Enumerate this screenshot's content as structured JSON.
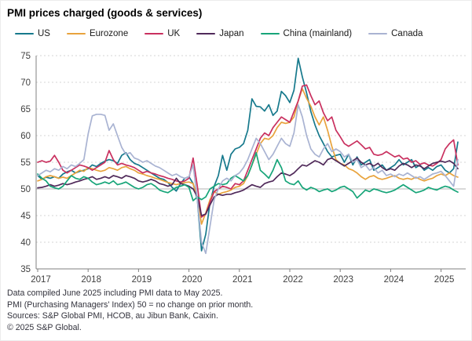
{
  "title": "PMI prices charged (goods & services)",
  "footer": {
    "lines": [
      "Data compiled June 2025 including PMI data to May 2025.",
      "PMI  (Purchasing Managers' Index) 50 = no change on prior month.",
      "Sources: S&P Global PMI,  HCOB, au Jibun Bank, Caixin.",
      "© 2025 S&P Global."
    ]
  },
  "chart_data": {
    "type": "line",
    "title": "PMI prices charged (goods & services)",
    "x_unit": "month",
    "x_start": "2017-01",
    "x_end": "2025-05",
    "x_tick_labels": [
      "2017",
      "2018",
      "2019",
      "2020",
      "2021",
      "2022",
      "2023",
      "2024",
      "2025"
    ],
    "ylim": [
      35,
      75
    ],
    "y_ticks": [
      35,
      40,
      45,
      50,
      55,
      60,
      65,
      70,
      75
    ],
    "grid": "horizontal dashed; solid line at 50 (no change level)",
    "legend_position": "top",
    "axis_color": "#808080",
    "series": [
      {
        "name": "US",
        "color": "#16798c",
        "values": [
          52.5,
          51.8,
          52.2,
          52.0,
          52.3,
          52.0,
          52.8,
          53.2,
          53.5,
          53.0,
          53.3,
          53.5,
          53.8,
          54.5,
          54.2,
          54.8,
          55.2,
          55.5,
          55.3,
          54.8,
          56.3,
          56.8,
          55.5,
          54.8,
          54.5,
          54.0,
          53.5,
          53.0,
          52.5,
          52.0,
          51.8,
          51.2,
          50.3,
          49.6,
          51.0,
          52.0,
          52.3,
          51.0,
          48.0,
          38.4,
          41.5,
          47.5,
          50.5,
          52.5,
          56.3,
          53.5,
          56.5,
          57.5,
          57.8,
          58.5,
          61.0,
          66.9,
          65.5,
          65.4,
          64.6,
          65.8,
          63.8,
          64.6,
          68.3,
          67.5,
          66.2,
          68.5,
          74.5,
          71.0,
          68.0,
          64.5,
          62.0,
          60.0,
          58.5,
          57.0,
          56.0,
          56.3,
          56.5,
          55.0,
          56.5,
          54.5,
          56.0,
          54.5,
          55.0,
          55.5,
          53.5,
          54.0,
          54.5,
          53.5,
          54.0,
          54.5,
          55.5,
          54.5,
          55.0,
          55.5,
          54.0,
          54.5,
          53.5,
          54.0,
          53.5,
          54.2,
          54.5,
          53.5,
          53.0,
          53.8,
          58.8
        ]
      },
      {
        "name": "Eurozone",
        "color": "#e8a33d",
        "values": [
          51.5,
          51.8,
          52.3,
          52.5,
          52.3,
          52.0,
          52.2,
          52.0,
          52.5,
          53.0,
          53.5,
          53.3,
          54.0,
          53.8,
          53.5,
          53.3,
          53.5,
          54.0,
          53.8,
          53.5,
          54.0,
          54.2,
          53.8,
          53.5,
          53.0,
          52.8,
          52.5,
          52.3,
          52.0,
          51.8,
          51.5,
          51.2,
          51.0,
          50.8,
          51.0,
          51.2,
          51.3,
          51.0,
          48.5,
          43.4,
          45.5,
          48.0,
          49.5,
          49.0,
          49.3,
          49.5,
          49.8,
          50.3,
          50.5,
          51.0,
          52.5,
          54.5,
          56.5,
          58.5,
          59.5,
          59.3,
          60.0,
          61.5,
          62.5,
          62.3,
          62.5,
          63.5,
          66.5,
          68.8,
          67.0,
          65.5,
          63.5,
          62.0,
          63.5,
          61.0,
          58.0,
          55.5,
          54.8,
          54.5,
          53.8,
          53.5,
          53.0,
          52.3,
          51.8,
          52.3,
          52.5,
          52.0,
          51.8,
          52.0,
          52.3,
          52.5,
          52.0,
          51.8,
          52.0,
          51.8,
          52.2,
          51.8,
          51.5,
          51.8,
          52.0,
          52.5,
          52.8,
          52.5,
          53.0,
          52.5,
          52.2
        ]
      },
      {
        "name": "UK",
        "color": "#c9305f",
        "values": [
          55.0,
          55.3,
          55.0,
          55.2,
          56.3,
          55.0,
          53.5,
          53.0,
          53.5,
          54.0,
          54.5,
          54.3,
          54.0,
          53.5,
          54.0,
          54.5,
          55.0,
          57.2,
          55.5,
          54.5,
          54.8,
          54.5,
          54.3,
          54.0,
          53.5,
          53.0,
          53.3,
          53.0,
          52.8,
          52.5,
          52.3,
          52.0,
          51.8,
          51.5,
          51.3,
          51.5,
          52.0,
          55.8,
          50.5,
          44.7,
          45.3,
          47.5,
          49.5,
          50.0,
          50.5,
          50.3,
          50.0,
          51.0,
          50.8,
          51.5,
          53.5,
          55.5,
          57.5,
          59.5,
          60.5,
          60.0,
          61.5,
          62.5,
          63.5,
          63.0,
          62.5,
          64.5,
          66.5,
          69.3,
          69.5,
          67.5,
          65.8,
          66.5,
          64.3,
          62.8,
          63.5,
          61.0,
          59.8,
          58.5,
          58.0,
          58.5,
          59.0,
          58.3,
          57.5,
          57.8,
          56.5,
          56.3,
          56.5,
          57.0,
          56.5,
          56.0,
          56.3,
          55.6,
          55.8,
          55.0,
          55.3,
          54.6,
          54.9,
          54.5,
          54.3,
          54.8,
          55.5,
          57.5,
          58.5,
          59.2,
          54.5
        ]
      },
      {
        "name": "Japan",
        "color": "#502a5a",
        "values": [
          50.2,
          50.3,
          50.5,
          50.8,
          50.5,
          50.7,
          51.0,
          50.8,
          51.0,
          51.3,
          51.5,
          51.8,
          52.0,
          52.3,
          51.8,
          52.0,
          52.3,
          52.0,
          52.5,
          52.3,
          52.0,
          52.5,
          52.3,
          52.0,
          51.5,
          51.3,
          51.5,
          51.8,
          51.5,
          51.0,
          50.8,
          50.5,
          50.8,
          52.0,
          51.0,
          50.8,
          50.5,
          50.0,
          48.5,
          45.0,
          45.3,
          47.0,
          48.5,
          49.0,
          48.8,
          49.0,
          49.0,
          49.3,
          49.5,
          49.8,
          50.3,
          50.8,
          50.5,
          50.3,
          51.0,
          51.3,
          51.5,
          52.3,
          53.0,
          52.8,
          52.5,
          53.0,
          53.8,
          54.5,
          54.3,
          54.8,
          55.3,
          55.0,
          54.5,
          55.5,
          55.8,
          55.3,
          54.8,
          54.3,
          54.8,
          55.3,
          55.8,
          55.0,
          54.5,
          54.8,
          54.3,
          54.8,
          54.0,
          53.5,
          53.8,
          53.5,
          54.3,
          54.8,
          54.5,
          54.0,
          54.5,
          54.3,
          53.8,
          54.3,
          54.8,
          55.0,
          55.2,
          55.0,
          55.3,
          54.8,
          53.8
        ]
      },
      {
        "name": "China (mainland)",
        "color": "#17a579",
        "values": [
          52.8,
          52.0,
          51.5,
          50.5,
          50.2,
          50.0,
          50.5,
          51.5,
          52.5,
          52.0,
          51.8,
          52.3,
          52.0,
          51.3,
          50.8,
          51.0,
          51.3,
          51.0,
          51.5,
          50.8,
          51.0,
          51.3,
          50.8,
          50.3,
          50.0,
          50.3,
          50.8,
          51.0,
          50.5,
          49.8,
          49.5,
          49.3,
          49.8,
          50.3,
          50.5,
          50.8,
          50.3,
          47.8,
          48.5,
          48.0,
          48.5,
          50.0,
          50.5,
          51.0,
          50.8,
          51.0,
          52.0,
          52.5,
          52.0,
          51.5,
          52.5,
          54.5,
          56.8,
          53.5,
          52.8,
          52.0,
          53.5,
          55.5,
          54.0,
          51.5,
          51.0,
          50.8,
          51.5,
          50.3,
          49.8,
          50.3,
          50.0,
          49.5,
          49.8,
          50.0,
          49.5,
          49.8,
          50.3,
          50.5,
          50.0,
          49.5,
          48.3,
          49.0,
          49.8,
          49.5,
          50.0,
          49.8,
          49.5,
          49.3,
          49.5,
          49.8,
          50.3,
          50.8,
          50.3,
          49.8,
          49.3,
          49.5,
          49.8,
          50.3,
          50.0,
          49.8,
          50.2,
          50.5,
          50.3,
          49.8,
          49.4
        ]
      },
      {
        "name": "Canada",
        "color": "#a9b3d2",
        "values": [
          52.5,
          53.0,
          53.5,
          53.2,
          53.8,
          53.5,
          54.2,
          53.8,
          54.5,
          54.2,
          54.8,
          55.5,
          60.3,
          63.7,
          64.0,
          64.0,
          63.8,
          61.0,
          62.2,
          60.0,
          57.8,
          56.5,
          56.8,
          55.8,
          55.5,
          55.0,
          55.3,
          54.8,
          54.3,
          54.0,
          53.5,
          53.0,
          52.5,
          52.8,
          52.3,
          52.0,
          52.3,
          54.5,
          48.0,
          40.0,
          37.9,
          43.0,
          48.0,
          50.0,
          51.5,
          52.0,
          51.5,
          52.5,
          53.0,
          54.0,
          55.5,
          57.5,
          59.5,
          58.5,
          57.0,
          55.5,
          56.5,
          58.0,
          59.5,
          58.5,
          58.0,
          60.5,
          65.8,
          63.5,
          60.0,
          57.5,
          56.5,
          56.0,
          57.5,
          58.5,
          57.0,
          57.5,
          57.0,
          56.0,
          56.5,
          55.0,
          55.5,
          54.0,
          54.5,
          53.5,
          54.0,
          53.0,
          53.5,
          52.5,
          52.8,
          52.3,
          52.8,
          52.5,
          53.0,
          52.5,
          52.0,
          52.3,
          51.8,
          52.3,
          52.8,
          53.0,
          53.3,
          52.5,
          51.5,
          50.5,
          55.5
        ]
      }
    ]
  }
}
